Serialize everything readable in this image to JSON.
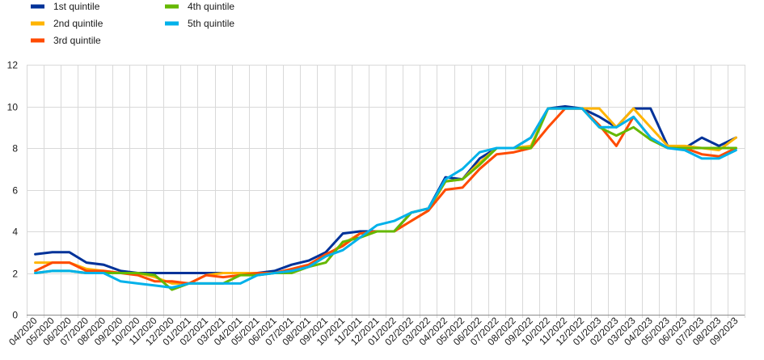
{
  "chart_data": {
    "type": "line",
    "categories": [
      "04/2020",
      "05/2020",
      "06/2020",
      "07/2020",
      "08/2020",
      "09/2020",
      "10/2020",
      "11/2020",
      "12/2020",
      "01/2021",
      "02/2021",
      "03/2021",
      "04/2021",
      "05/2021",
      "06/2021",
      "07/2021",
      "08/2021",
      "09/2021",
      "10/2021",
      "11/2021",
      "12/2021",
      "01/2022",
      "02/2022",
      "03/2022",
      "04/2022",
      "05/2022",
      "06/2022",
      "07/2022",
      "08/2022",
      "09/2022",
      "10/2022",
      "11/2022",
      "12/2022",
      "01/2023",
      "02/2023",
      "03/2023",
      "04/2023",
      "05/2023",
      "06/2023",
      "07/2023",
      "08/2023",
      "09/2023"
    ],
    "ylim": [
      0,
      12
    ],
    "yticks": [
      0,
      2,
      4,
      6,
      8,
      10,
      12
    ],
    "grid": true,
    "legend_position": "top-left",
    "series": [
      {
        "name": "1st quintile",
        "color": "#003299",
        "values": [
          2.9,
          3.0,
          3.0,
          2.5,
          2.4,
          2.1,
          2.0,
          2.0,
          2.0,
          2.0,
          2.0,
          2.0,
          2.0,
          2.0,
          2.1,
          2.4,
          2.6,
          3.0,
          3.9,
          4.0,
          4.0,
          4.0,
          4.9,
          5.1,
          6.6,
          6.5,
          7.5,
          8.0,
          8.0,
          8.5,
          9.9,
          10.0,
          9.9,
          9.5,
          9.0,
          9.9,
          9.9,
          8.1,
          8.0,
          8.5,
          8.1,
          8.5
        ]
      },
      {
        "name": "2nd quintile",
        "color": "#FFB400",
        "values": [
          2.5,
          2.5,
          2.5,
          2.2,
          2.1,
          2.0,
          2.0,
          1.8,
          1.5,
          1.5,
          1.9,
          2.0,
          2.0,
          2.0,
          2.0,
          2.1,
          2.3,
          2.8,
          3.4,
          3.9,
          4.0,
          4.0,
          4.5,
          5.0,
          6.4,
          6.5,
          7.3,
          8.0,
          8.0,
          8.1,
          9.9,
          9.9,
          9.9,
          9.9,
          9.0,
          9.9,
          9.0,
          8.1,
          8.1,
          8.0,
          7.9,
          8.5
        ]
      },
      {
        "name": "3rd quintile",
        "color": "#FF4B00",
        "values": [
          2.1,
          2.5,
          2.5,
          2.1,
          2.1,
          2.0,
          1.9,
          1.6,
          1.6,
          1.5,
          1.9,
          1.8,
          1.9,
          2.0,
          2.0,
          2.2,
          2.4,
          2.9,
          3.3,
          3.9,
          4.0,
          4.0,
          4.5,
          5.0,
          6.0,
          6.1,
          7.0,
          7.7,
          7.8,
          8.0,
          9.0,
          9.9,
          9.9,
          9.1,
          8.1,
          9.5,
          8.5,
          8.0,
          8.0,
          7.7,
          7.6,
          8.0
        ]
      },
      {
        "name": "4th quintile",
        "color": "#65B800",
        "values": [
          2.0,
          2.1,
          2.1,
          2.0,
          2.0,
          2.0,
          2.0,
          1.9,
          1.2,
          1.5,
          1.5,
          1.5,
          1.9,
          1.9,
          2.0,
          2.0,
          2.3,
          2.5,
          3.5,
          3.7,
          4.0,
          4.0,
          4.9,
          5.1,
          6.4,
          6.5,
          7.2,
          8.0,
          8.0,
          8.0,
          9.9,
          9.9,
          9.9,
          9.0,
          8.6,
          9.0,
          8.4,
          8.0,
          8.0,
          8.0,
          8.0,
          8.0
        ]
      },
      {
        "name": "5th quintile",
        "color": "#00B1EA",
        "values": [
          2.0,
          2.1,
          2.1,
          2.0,
          2.0,
          1.6,
          1.5,
          1.4,
          1.3,
          1.5,
          1.5,
          1.5,
          1.5,
          1.9,
          2.0,
          2.1,
          2.3,
          2.8,
          3.1,
          3.7,
          4.3,
          4.5,
          4.9,
          5.1,
          6.5,
          7.0,
          7.8,
          8.0,
          8.0,
          8.5,
          9.9,
          9.9,
          9.9,
          9.0,
          9.0,
          9.5,
          8.5,
          8.0,
          7.9,
          7.5,
          7.5,
          7.9
        ]
      }
    ]
  }
}
